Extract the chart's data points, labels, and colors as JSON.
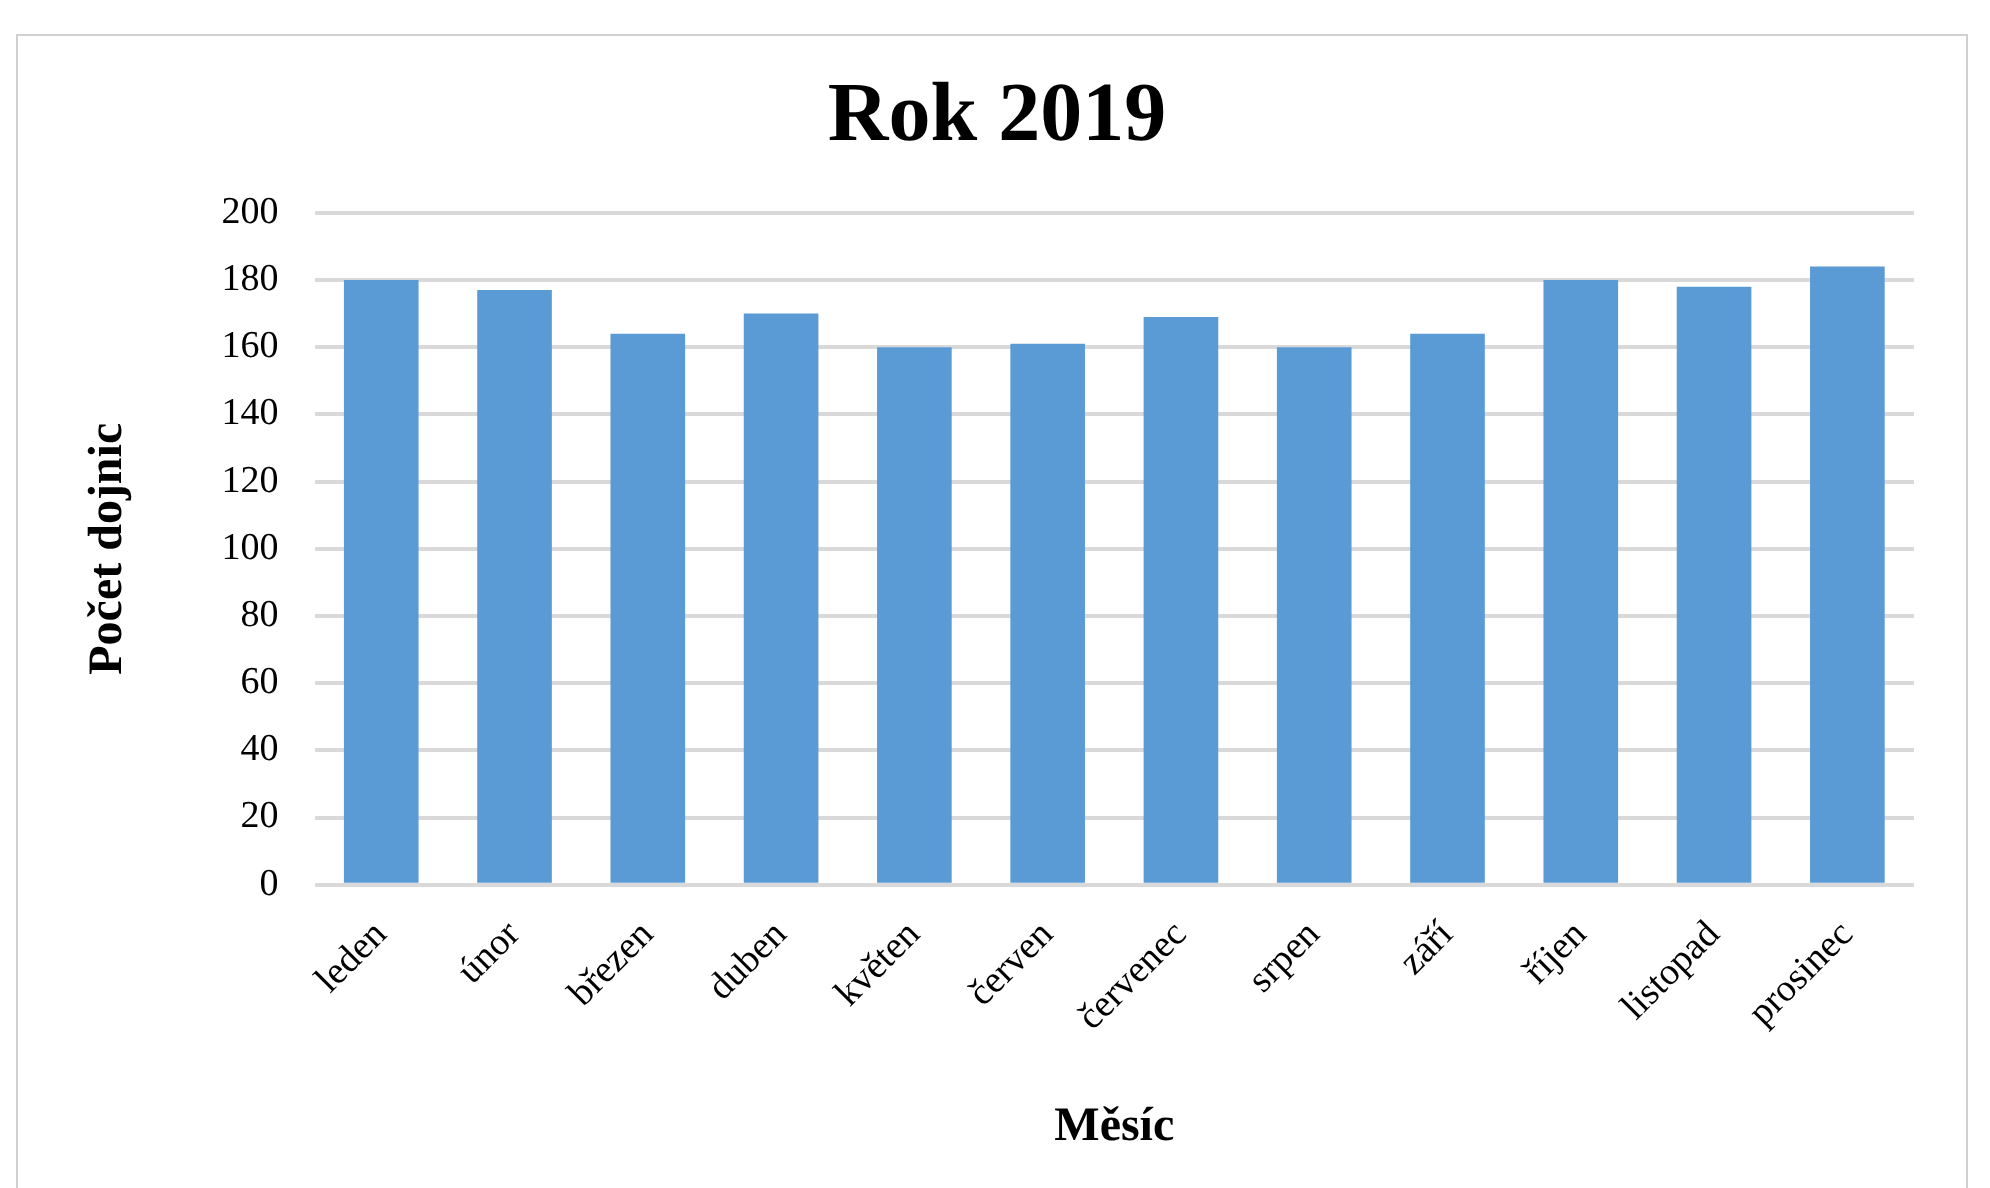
{
  "chart_data": {
    "type": "bar",
    "title": "Rok 2019",
    "xlabel": "Měsíc",
    "ylabel": "Počet dojnic",
    "categories": [
      "leden",
      "únor",
      "březen",
      "duben",
      "květen",
      "červen",
      "červenec",
      "srpen",
      "září",
      "říjen",
      "listopad",
      "prosinec"
    ],
    "values": [
      180,
      177,
      164,
      170,
      160,
      161,
      169,
      160,
      164,
      180,
      178,
      184
    ],
    "color": "#5b9bd5",
    "ylim": [
      0,
      200
    ],
    "yticks": [
      0,
      20,
      40,
      60,
      80,
      100,
      120,
      140,
      160,
      180,
      200
    ],
    "grid": "y"
  }
}
